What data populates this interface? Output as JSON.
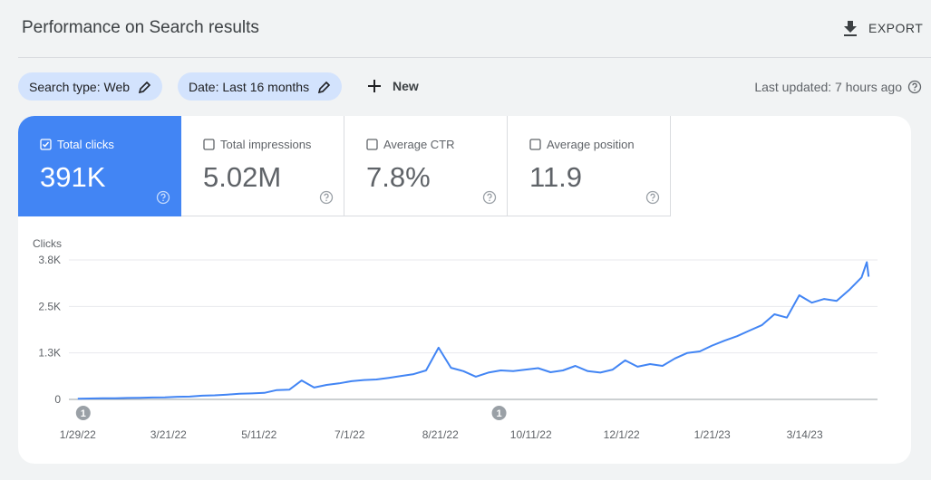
{
  "header": {
    "title": "Performance on Search results",
    "export": "EXPORT"
  },
  "filters": {
    "chips": [
      "Search type: Web",
      "Date: Last 16 months"
    ],
    "new": "New",
    "last_updated": "Last updated: 7 hours ago"
  },
  "metrics": [
    {
      "label": "Total clicks",
      "value": "391K",
      "selected": true
    },
    {
      "label": "Total impressions",
      "value": "5.02M",
      "selected": false
    },
    {
      "label": "Average CTR",
      "value": "7.8%",
      "selected": false
    },
    {
      "label": "Average position",
      "value": "11.9",
      "selected": false
    }
  ],
  "chart_data": {
    "type": "line",
    "y_label": "Clicks",
    "color": "#4285f4",
    "x": [
      "1/29/22",
      "2/5/22",
      "2/12/22",
      "2/19/22",
      "2/26/22",
      "3/5/22",
      "3/12/22",
      "3/19/22",
      "3/26/22",
      "4/2/22",
      "4/9/22",
      "4/16/22",
      "4/23/22",
      "4/30/22",
      "5/7/22",
      "5/14/22",
      "5/21/22",
      "5/28/22",
      "6/4/22",
      "6/11/22",
      "6/18/22",
      "6/25/22",
      "7/2/22",
      "7/9/22",
      "7/16/22",
      "7/23/22",
      "7/30/22",
      "8/6/22",
      "8/13/22",
      "8/20/22",
      "8/27/22",
      "9/3/22",
      "9/10/22",
      "9/17/22",
      "9/24/22",
      "10/1/22",
      "10/8/22",
      "10/15/22",
      "10/22/22",
      "10/29/22",
      "11/5/22",
      "11/12/22",
      "11/19/22",
      "11/26/22",
      "12/3/22",
      "12/10/22",
      "12/17/22",
      "12/24/22",
      "12/31/22",
      "1/7/23",
      "1/14/23",
      "1/21/23",
      "1/28/23",
      "2/4/23",
      "2/11/23",
      "2/18/23",
      "2/25/23",
      "3/4/23",
      "3/11/23",
      "3/18/23",
      "3/25/23",
      "4/1/23",
      "4/8/23",
      "4/15/23",
      "4/18/23",
      "4/19/23"
    ],
    "values": [
      20,
      25,
      30,
      30,
      40,
      45,
      50,
      55,
      70,
      75,
      100,
      110,
      130,
      150,
      160,
      175,
      250,
      260,
      510,
      320,
      390,
      430,
      490,
      520,
      535,
      580,
      630,
      680,
      780,
      1390,
      850,
      760,
      610,
      720,
      780,
      760,
      800,
      840,
      730,
      780,
      900,
      760,
      720,
      800,
      1050,
      880,
      950,
      900,
      1100,
      1250,
      1290,
      1450,
      1580,
      1700,
      1850,
      2000,
      2290,
      2200,
      2800,
      2600,
      2700,
      2650,
      2940,
      3280,
      3690,
      3300
    ],
    "xlim": [
      "1/24/22",
      "4/24/23"
    ],
    "xticks": [
      "1/29/22",
      "3/21/22",
      "5/11/22",
      "7/1/22",
      "8/21/22",
      "10/11/22",
      "12/1/22",
      "1/21/23",
      "3/14/23"
    ],
    "ylim": [
      0,
      3750
    ],
    "yticks": [
      0,
      {
        "value": 1250,
        "label": "1.3K"
      },
      {
        "value": 2500,
        "label": "2.5K"
      },
      {
        "value": 3750,
        "label": "3.8K"
      }
    ],
    "grid": true,
    "annotations": [
      {
        "x": "1/29/22",
        "label": "1"
      },
      {
        "x": "9/20/22",
        "label": "1"
      }
    ]
  }
}
